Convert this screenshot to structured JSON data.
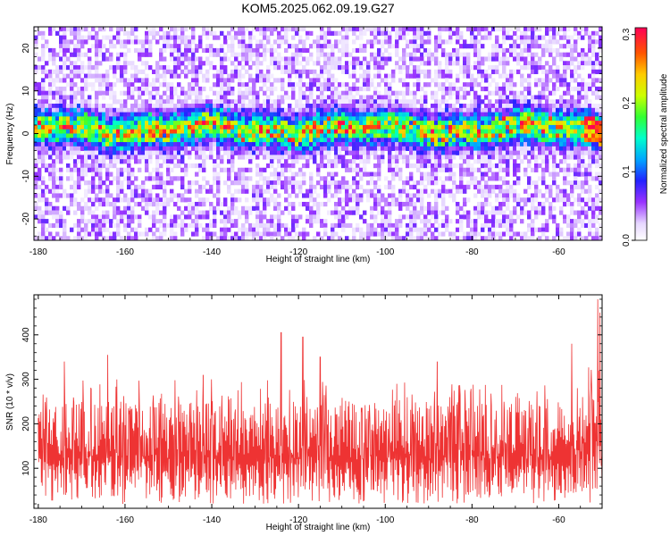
{
  "title": "KOM5.2025.062.09.19.G27",
  "chart_data": [
    {
      "type": "heatmap",
      "title": "KOM5.2025.062.09.19.G27",
      "xlabel": "Height of straight line (km)",
      "ylabel": "Frequency (Hz)",
      "xlim": [
        -181,
        -50
      ],
      "ylim": [
        -25,
        25
      ],
      "x_ticks": [
        -180,
        -160,
        -140,
        -120,
        -100,
        -80,
        -60
      ],
      "x_tick_labels": [
        "-180",
        "-160",
        "-140",
        "-120",
        "-100",
        "-80",
        "-60"
      ],
      "y_ticks": [
        -20,
        -10,
        0,
        10,
        20
      ],
      "y_tick_labels": [
        "-20",
        "-10",
        "0",
        "10",
        "20"
      ],
      "colorbar": {
        "label": "Normalized spectral amplitude",
        "range": [
          0.0,
          0.31
        ],
        "ticks": [
          0.0,
          0.1,
          0.2,
          0.3
        ],
        "tick_labels": [
          "0.0",
          "0.1",
          "0.2",
          "0.3"
        ]
      },
      "band_center_hz": 1,
      "band_halfwidth_hz": 4,
      "grid": false
    },
    {
      "type": "line",
      "xlabel": "Height of straight line (km)",
      "ylabel": "SNR (10 * v/v)",
      "xlim": [
        -181,
        -50
      ],
      "ylim": [
        10,
        490
      ],
      "x_ticks": [
        -180,
        -160,
        -140,
        -120,
        -100,
        -80,
        -60
      ],
      "x_tick_labels": [
        "-180",
        "-160",
        "-140",
        "-120",
        "-100",
        "-80",
        "-60"
      ],
      "y_ticks": [
        100,
        200,
        300,
        400
      ],
      "y_tick_labels": [
        "100",
        "200",
        "300",
        "400"
      ],
      "series_color": "#ee3333",
      "peaks": [
        {
          "x": -174,
          "y": 340
        },
        {
          "x": -164,
          "y": 355
        },
        {
          "x": -142,
          "y": 310
        },
        {
          "x": -124,
          "y": 405
        },
        {
          "x": -119,
          "y": 395
        },
        {
          "x": -115,
          "y": 350
        },
        {
          "x": -88,
          "y": 340
        },
        {
          "x": -57,
          "y": 380
        },
        {
          "x": -51,
          "y": 480
        },
        {
          "x": -50.5,
          "y": 450
        }
      ],
      "grid": false
    }
  ]
}
